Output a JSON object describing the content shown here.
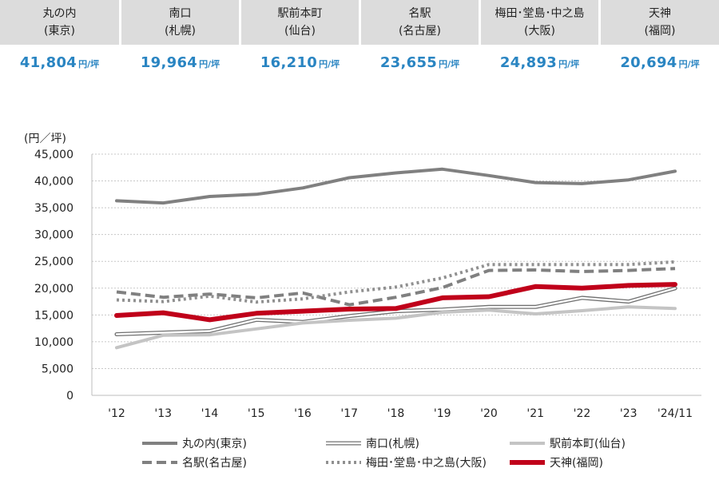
{
  "cards": [
    {
      "city": "丸の内",
      "region": "(東京)",
      "value": "41,804",
      "unit": "円/坪"
    },
    {
      "city": "南口",
      "region": "(札幌)",
      "value": "19,964",
      "unit": "円/坪"
    },
    {
      "city": "駅前本町",
      "region": "(仙台)",
      "value": "16,210",
      "unit": "円/坪"
    },
    {
      "city": "名駅",
      "region": "(名古屋)",
      "value": "23,655",
      "unit": "円/坪"
    },
    {
      "city": "梅田･堂島･中之島",
      "region": "(大阪)",
      "value": "24,893",
      "unit": "円/坪"
    },
    {
      "city": "天神",
      "region": "(福岡)",
      "value": "20,694",
      "unit": "円/坪"
    }
  ],
  "colors": {
    "card_bg": "#dcdcdc",
    "value_text": "#2a85c2",
    "tenjin": "#c0001a"
  },
  "chart_data": {
    "type": "line",
    "ylabel": "(円／坪)",
    "ylim": [
      0,
      45000
    ],
    "yticks": [
      "0",
      "5,000",
      "10,000",
      "15,000",
      "20,000",
      "25,000",
      "30,000",
      "35,000",
      "40,000",
      "45,000"
    ],
    "categories": [
      "'12",
      "'13",
      "'14",
      "'15",
      "'16",
      "'17",
      "'18",
      "'19",
      "'20",
      "'21",
      "'22",
      "'23",
      "'24/11"
    ],
    "grid": true,
    "legend_position": "bottom",
    "series": [
      {
        "name": "丸の内(東京)",
        "style": "solid-thick",
        "color": "#808080",
        "values": [
          36300,
          35900,
          37100,
          37500,
          38700,
          40600,
          41500,
          42200,
          41000,
          39700,
          39500,
          40200,
          41804
        ]
      },
      {
        "name": "南口(札幌)",
        "style": "double",
        "color": "#707070",
        "values": [
          11400,
          11700,
          12000,
          14100,
          13700,
          14800,
          15700,
          16000,
          16500,
          16500,
          18200,
          17500,
          19964
        ]
      },
      {
        "name": "駅前本町(仙台)",
        "style": "solid-light",
        "color": "#c4c4c4",
        "values": [
          8900,
          11200,
          11300,
          12400,
          13500,
          14000,
          14400,
          15500,
          15900,
          15200,
          15800,
          16500,
          16210
        ]
      },
      {
        "name": "名駅(名古屋)",
        "style": "dashed",
        "color": "#808080",
        "values": [
          19300,
          18300,
          18900,
          18200,
          19100,
          16900,
          18300,
          20100,
          23300,
          23400,
          23100,
          23300,
          23655
        ]
      },
      {
        "name": "梅田･堂島･中之島(大阪)",
        "style": "dotted",
        "color": "#909090",
        "values": [
          17800,
          17500,
          18500,
          17400,
          18000,
          19300,
          20200,
          21900,
          24400,
          24400,
          24400,
          24400,
          24893
        ]
      },
      {
        "name": "天神(福岡)",
        "style": "solid-red",
        "color": "#c0001a",
        "values": [
          14900,
          15400,
          14100,
          15300,
          15700,
          16100,
          16200,
          18200,
          18400,
          20300,
          20000,
          20500,
          20694
        ]
      }
    ]
  }
}
